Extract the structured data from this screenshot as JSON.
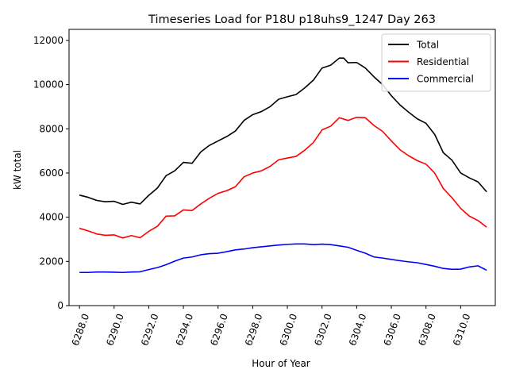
{
  "chart_data": {
    "type": "line",
    "title": "Timeseries Load for P18U p18uhs9_1247  Day 263",
    "xlabel": "Hour of Year",
    "ylabel": "kW total",
    "xlim": [
      6287.4,
      6312.0
    ],
    "ylim": [
      0,
      12500
    ],
    "xticks": [
      6288,
      6290,
      6292,
      6294,
      6296,
      6298,
      6300,
      6302,
      6304,
      6306,
      6308,
      6310
    ],
    "xtick_labels": [
      "6288.0",
      "6290.0",
      "6292.0",
      "6294.0",
      "6296.0",
      "6298.0",
      "6300.0",
      "6302.0",
      "6304.0",
      "6306.0",
      "6308.0",
      "6310.0"
    ],
    "yticks": [
      0,
      2000,
      4000,
      6000,
      8000,
      10000,
      12000
    ],
    "ytick_labels": [
      "0",
      "2000",
      "4000",
      "6000",
      "8000",
      "10000",
      "12000"
    ],
    "legend_position": "top-right",
    "series": [
      {
        "name": "Total",
        "color": "#000000",
        "points": [
          [
            6288.0,
            5000
          ],
          [
            6288.5,
            4900
          ],
          [
            6289.0,
            4760
          ],
          [
            6289.5,
            4700
          ],
          [
            6290.0,
            4720
          ],
          [
            6290.5,
            4580
          ],
          [
            6291.0,
            4680
          ],
          [
            6291.5,
            4600
          ],
          [
            6292.0,
            4990
          ],
          [
            6292.5,
            5320
          ],
          [
            6293.0,
            5880
          ],
          [
            6293.5,
            6100
          ],
          [
            6294.0,
            6480
          ],
          [
            6294.5,
            6440
          ],
          [
            6295.0,
            6950
          ],
          [
            6295.5,
            7250
          ],
          [
            6296.0,
            7450
          ],
          [
            6296.5,
            7650
          ],
          [
            6297.0,
            7900
          ],
          [
            6297.5,
            8380
          ],
          [
            6298.0,
            8640
          ],
          [
            6298.5,
            8780
          ],
          [
            6299.0,
            9000
          ],
          [
            6299.5,
            9340
          ],
          [
            6300.0,
            9450
          ],
          [
            6300.5,
            9550
          ],
          [
            6301.0,
            9850
          ],
          [
            6301.5,
            10200
          ],
          [
            6302.0,
            10750
          ],
          [
            6302.5,
            10880
          ],
          [
            6303.0,
            11200
          ],
          [
            6303.25,
            11200
          ],
          [
            6303.5,
            10990
          ],
          [
            6304.0,
            11000
          ],
          [
            6304.5,
            10750
          ],
          [
            6305.0,
            10350
          ],
          [
            6305.5,
            10000
          ],
          [
            6306.0,
            9500
          ],
          [
            6306.5,
            9080
          ],
          [
            6307.0,
            8750
          ],
          [
            6307.5,
            8450
          ],
          [
            6308.0,
            8250
          ],
          [
            6308.5,
            7750
          ],
          [
            6309.0,
            6920
          ],
          [
            6309.5,
            6580
          ],
          [
            6310.0,
            6000
          ],
          [
            6310.5,
            5780
          ],
          [
            6311.0,
            5600
          ],
          [
            6311.5,
            5150
          ]
        ]
      },
      {
        "name": "Residential",
        "color": "#ff0000",
        "points": [
          [
            6288.0,
            3500
          ],
          [
            6288.5,
            3380
          ],
          [
            6289.0,
            3240
          ],
          [
            6289.5,
            3180
          ],
          [
            6290.0,
            3200
          ],
          [
            6290.5,
            3060
          ],
          [
            6291.0,
            3170
          ],
          [
            6291.5,
            3070
          ],
          [
            6292.0,
            3360
          ],
          [
            6292.5,
            3590
          ],
          [
            6293.0,
            4050
          ],
          [
            6293.5,
            4060
          ],
          [
            6294.0,
            4330
          ],
          [
            6294.5,
            4300
          ],
          [
            6295.0,
            4600
          ],
          [
            6295.5,
            4860
          ],
          [
            6296.0,
            5080
          ],
          [
            6296.5,
            5200
          ],
          [
            6297.0,
            5380
          ],
          [
            6297.5,
            5830
          ],
          [
            6298.0,
            6000
          ],
          [
            6298.5,
            6100
          ],
          [
            6299.0,
            6300
          ],
          [
            6299.5,
            6600
          ],
          [
            6300.0,
            6680
          ],
          [
            6300.5,
            6750
          ],
          [
            6301.0,
            7030
          ],
          [
            6301.5,
            7380
          ],
          [
            6302.0,
            7950
          ],
          [
            6302.5,
            8120
          ],
          [
            6303.0,
            8500
          ],
          [
            6303.5,
            8380
          ],
          [
            6304.0,
            8520
          ],
          [
            6304.5,
            8500
          ],
          [
            6305.0,
            8150
          ],
          [
            6305.5,
            7880
          ],
          [
            6306.0,
            7450
          ],
          [
            6306.5,
            7050
          ],
          [
            6307.0,
            6780
          ],
          [
            6307.5,
            6560
          ],
          [
            6308.0,
            6400
          ],
          [
            6308.5,
            6000
          ],
          [
            6309.0,
            5300
          ],
          [
            6309.5,
            4880
          ],
          [
            6310.0,
            4400
          ],
          [
            6310.5,
            4050
          ],
          [
            6311.0,
            3850
          ],
          [
            6311.5,
            3550
          ]
        ]
      },
      {
        "name": "Commercial",
        "color": "#0000ff",
        "points": [
          [
            6288.0,
            1500
          ],
          [
            6288.5,
            1500
          ],
          [
            6289.0,
            1520
          ],
          [
            6289.5,
            1520
          ],
          [
            6290.0,
            1510
          ],
          [
            6290.5,
            1500
          ],
          [
            6291.0,
            1520
          ],
          [
            6291.5,
            1530
          ],
          [
            6292.0,
            1630
          ],
          [
            6292.5,
            1720
          ],
          [
            6293.0,
            1850
          ],
          [
            6293.5,
            2010
          ],
          [
            6294.0,
            2150
          ],
          [
            6294.5,
            2200
          ],
          [
            6295.0,
            2300
          ],
          [
            6295.5,
            2350
          ],
          [
            6296.0,
            2370
          ],
          [
            6296.5,
            2440
          ],
          [
            6297.0,
            2520
          ],
          [
            6297.5,
            2560
          ],
          [
            6298.0,
            2620
          ],
          [
            6298.5,
            2660
          ],
          [
            6299.0,
            2700
          ],
          [
            6299.5,
            2740
          ],
          [
            6300.0,
            2770
          ],
          [
            6300.5,
            2790
          ],
          [
            6301.0,
            2790
          ],
          [
            6301.5,
            2760
          ],
          [
            6302.0,
            2780
          ],
          [
            6302.5,
            2760
          ],
          [
            6303.0,
            2700
          ],
          [
            6303.5,
            2640
          ],
          [
            6304.0,
            2500
          ],
          [
            6304.5,
            2370
          ],
          [
            6305.0,
            2200
          ],
          [
            6305.5,
            2150
          ],
          [
            6306.0,
            2090
          ],
          [
            6306.5,
            2030
          ],
          [
            6307.0,
            1980
          ],
          [
            6307.5,
            1940
          ],
          [
            6308.0,
            1860
          ],
          [
            6308.5,
            1780
          ],
          [
            6309.0,
            1680
          ],
          [
            6309.5,
            1640
          ],
          [
            6310.0,
            1650
          ],
          [
            6310.5,
            1750
          ],
          [
            6311.0,
            1800
          ],
          [
            6311.5,
            1600
          ]
        ]
      }
    ]
  }
}
